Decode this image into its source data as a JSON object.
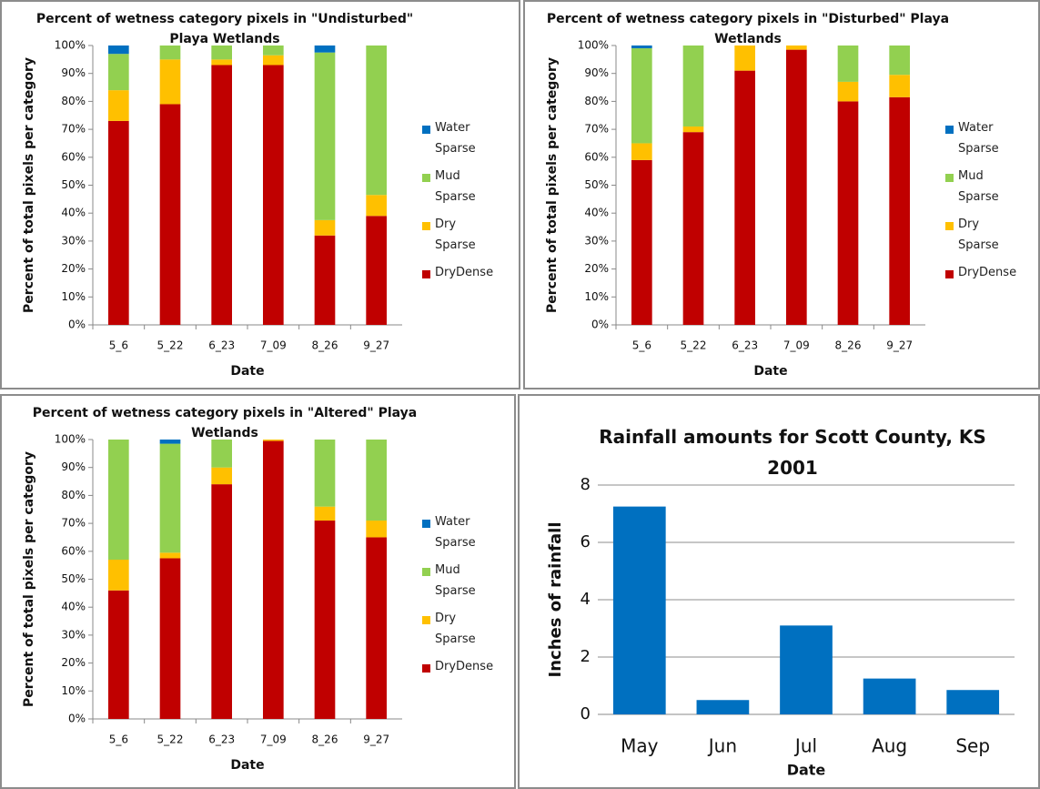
{
  "chart_data": [
    {
      "type": "bar",
      "stacked": true,
      "title": "Percent of wetness category pixels in \"Undisturbed\" Playa Wetlands",
      "xlabel": "Date",
      "ylabel": "Percent of total pixels per category",
      "categories": [
        "5_6",
        "5_22",
        "6_23",
        "7_09",
        "8_26",
        "9_27"
      ],
      "series": [
        {
          "name": "DryDense",
          "color": "#c00000",
          "values": [
            73,
            79,
            93,
            93,
            32,
            39
          ]
        },
        {
          "name": "Dry Sparse",
          "color": "#ffc000",
          "values": [
            11,
            16,
            2,
            3.5,
            5.5,
            7.5
          ]
        },
        {
          "name": "Mud Sparse",
          "color": "#92d050",
          "values": [
            13,
            5,
            5,
            3.5,
            60,
            53.5
          ]
        },
        {
          "name": "Water Sparse",
          "color": "#0070c0",
          "values": [
            3,
            0,
            0,
            0,
            2.5,
            0
          ]
        }
      ],
      "ylim": [
        0,
        100
      ],
      "yticks": [
        {
          "value": 0,
          "label": "0%"
        },
        {
          "value": 10,
          "label": "10%"
        },
        {
          "value": 20,
          "label": "20%"
        },
        {
          "value": 30,
          "label": "30%"
        },
        {
          "value": 40,
          "label": "40%"
        },
        {
          "value": 50,
          "label": "50%"
        },
        {
          "value": 60,
          "label": "60%"
        },
        {
          "value": 70,
          "label": "70%"
        },
        {
          "value": 80,
          "label": "80%"
        },
        {
          "value": 90,
          "label": "90%"
        },
        {
          "value": 100,
          "label": "100%"
        }
      ],
      "grid": false,
      "legend": "right"
    },
    {
      "type": "bar",
      "stacked": true,
      "title": "Percent of wetness category pixels in \"Disturbed\" Playa Wetlands",
      "xlabel": "Date",
      "ylabel": "Percent of total pixels per category",
      "categories": [
        "5_6",
        "5_22",
        "6_23",
        "7_09",
        "8_26",
        "9_27"
      ],
      "series": [
        {
          "name": "DryDense",
          "color": "#c00000",
          "values": [
            59,
            69,
            91,
            98.5,
            80,
            81.5
          ]
        },
        {
          "name": "Dry Sparse",
          "color": "#ffc000",
          "values": [
            6,
            2,
            9,
            1.5,
            7,
            8
          ]
        },
        {
          "name": "Mud Sparse",
          "color": "#92d050",
          "values": [
            34,
            29,
            0,
            0,
            13,
            10.5
          ]
        },
        {
          "name": "Water Sparse",
          "color": "#0070c0",
          "values": [
            1,
            0,
            0,
            0,
            0,
            0
          ]
        }
      ],
      "ylim": [
        0,
        100
      ],
      "yticks": [
        {
          "value": 0,
          "label": "0%"
        },
        {
          "value": 10,
          "label": "10%"
        },
        {
          "value": 20,
          "label": "20%"
        },
        {
          "value": 30,
          "label": "30%"
        },
        {
          "value": 40,
          "label": "40%"
        },
        {
          "value": 50,
          "label": "50%"
        },
        {
          "value": 60,
          "label": "60%"
        },
        {
          "value": 70,
          "label": "70%"
        },
        {
          "value": 80,
          "label": "80%"
        },
        {
          "value": 90,
          "label": "90%"
        },
        {
          "value": 100,
          "label": "100%"
        }
      ],
      "grid": false,
      "legend": "right"
    },
    {
      "type": "bar",
      "stacked": true,
      "title": "Percent of wetness category pixels in \"Altered\" Playa Wetlands",
      "xlabel": "Date",
      "ylabel": "Percent of total pixels per category",
      "categories": [
        "5_6",
        "5_22",
        "6_23",
        "7_09",
        "8_26",
        "9_27"
      ],
      "series": [
        {
          "name": "DryDense",
          "color": "#c00000",
          "values": [
            46,
            57.5,
            84,
            99.5,
            71,
            65
          ]
        },
        {
          "name": "Dry Sparse",
          "color": "#ffc000",
          "values": [
            11,
            2,
            6,
            0.5,
            5,
            6
          ]
        },
        {
          "name": "Mud Sparse",
          "color": "#92d050",
          "values": [
            43,
            39,
            10,
            0,
            24,
            29
          ]
        },
        {
          "name": "Water Sparse",
          "color": "#0070c0",
          "values": [
            0,
            1.5,
            0,
            0,
            0,
            0
          ]
        }
      ],
      "ylim": [
        0,
        100
      ],
      "yticks": [
        {
          "value": 0,
          "label": "0%"
        },
        {
          "value": 10,
          "label": "10%"
        },
        {
          "value": 20,
          "label": "20%"
        },
        {
          "value": 30,
          "label": "30%"
        },
        {
          "value": 40,
          "label": "40%"
        },
        {
          "value": 50,
          "label": "50%"
        },
        {
          "value": 60,
          "label": "60%"
        },
        {
          "value": 70,
          "label": "70%"
        },
        {
          "value": 80,
          "label": "80%"
        },
        {
          "value": 90,
          "label": "90%"
        },
        {
          "value": 100,
          "label": "100%"
        }
      ],
      "grid": false,
      "legend": "right"
    },
    {
      "type": "bar",
      "title": "Rainfall amounts for Scott County, KS 2001",
      "xlabel": "Date",
      "ylabel": "Inches of rainfall",
      "categories": [
        "May",
        "Jun",
        "Jul",
        "Aug",
        "Sep"
      ],
      "values": [
        7.25,
        0.5,
        3.1,
        1.25,
        0.85
      ],
      "color": "#0070c0",
      "ylim": [
        0,
        8
      ],
      "yticks": [
        0,
        2,
        4,
        6,
        8
      ],
      "grid": true
    }
  ]
}
